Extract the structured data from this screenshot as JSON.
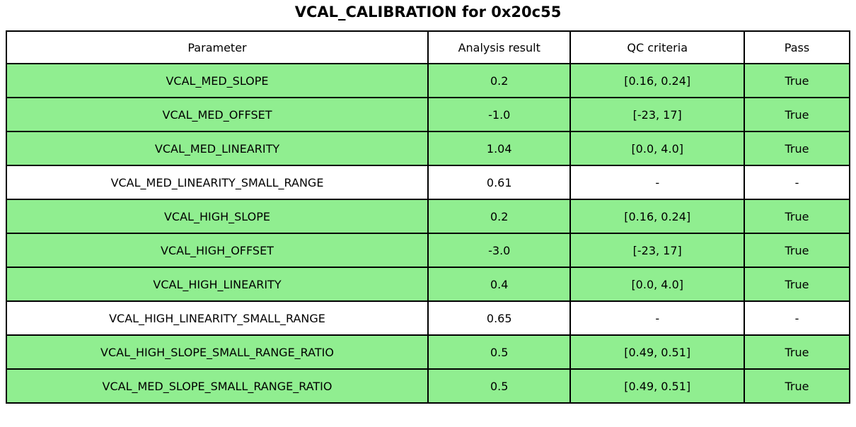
{
  "title": "VCAL_CALIBRATION for 0x20c55",
  "colors": {
    "pass_row_bg": "#90EE90",
    "default_row_bg": "#FFFFFF",
    "border": "#000000",
    "text": "#000000"
  },
  "table": {
    "columns": [
      "Parameter",
      "Analysis result",
      "QC criteria",
      "Pass"
    ],
    "rows": [
      {
        "cells": [
          "VCAL_MED_SLOPE",
          "0.2",
          "[0.16, 0.24]",
          "True"
        ],
        "highlight": true
      },
      {
        "cells": [
          "VCAL_MED_OFFSET",
          "-1.0",
          "[-23, 17]",
          "True"
        ],
        "highlight": true
      },
      {
        "cells": [
          "VCAL_MED_LINEARITY",
          "1.04",
          "[0.0, 4.0]",
          "True"
        ],
        "highlight": true
      },
      {
        "cells": [
          "VCAL_MED_LINEARITY_SMALL_RANGE",
          "0.61",
          "-",
          "-"
        ],
        "highlight": false
      },
      {
        "cells": [
          "VCAL_HIGH_SLOPE",
          "0.2",
          "[0.16, 0.24]",
          "True"
        ],
        "highlight": true
      },
      {
        "cells": [
          "VCAL_HIGH_OFFSET",
          "-3.0",
          "[-23, 17]",
          "True"
        ],
        "highlight": true
      },
      {
        "cells": [
          "VCAL_HIGH_LINEARITY",
          "0.4",
          "[0.0, 4.0]",
          "True"
        ],
        "highlight": true
      },
      {
        "cells": [
          "VCAL_HIGH_LINEARITY_SMALL_RANGE",
          "0.65",
          "-",
          "-"
        ],
        "highlight": false
      },
      {
        "cells": [
          "VCAL_HIGH_SLOPE_SMALL_RANGE_RATIO",
          "0.5",
          "[0.49, 0.51]",
          "True"
        ],
        "highlight": true
      },
      {
        "cells": [
          "VCAL_MED_SLOPE_SMALL_RANGE_RATIO",
          "0.5",
          "[0.49, 0.51]",
          "True"
        ],
        "highlight": true
      }
    ]
  },
  "chart_data": {
    "type": "table",
    "title": "VCAL_CALIBRATION for 0x20c55",
    "columns": [
      "Parameter",
      "Analysis result",
      "QC criteria",
      "Pass"
    ],
    "rows": [
      [
        "VCAL_MED_SLOPE",
        0.2,
        "[0.16, 0.24]",
        "True"
      ],
      [
        "VCAL_MED_OFFSET",
        -1.0,
        "[-23, 17]",
        "True"
      ],
      [
        "VCAL_MED_LINEARITY",
        1.04,
        "[0.0, 4.0]",
        "True"
      ],
      [
        "VCAL_MED_LINEARITY_SMALL_RANGE",
        0.61,
        "-",
        "-"
      ],
      [
        "VCAL_HIGH_SLOPE",
        0.2,
        "[0.16, 0.24]",
        "True"
      ],
      [
        "VCAL_HIGH_OFFSET",
        -3.0,
        "[-23, 17]",
        "True"
      ],
      [
        "VCAL_HIGH_LINEARITY",
        0.4,
        "[0.0, 4.0]",
        "True"
      ],
      [
        "VCAL_HIGH_LINEARITY_SMALL_RANGE",
        0.65,
        "-",
        "-"
      ],
      [
        "VCAL_HIGH_SLOPE_SMALL_RANGE_RATIO",
        0.5,
        "[0.49, 0.51]",
        "True"
      ],
      [
        "VCAL_MED_SLOPE_SMALL_RANGE_RATIO",
        0.5,
        "[0.49, 0.51]",
        "True"
      ]
    ],
    "row_highlight_color": "#90EE90",
    "grid": true,
    "legend_position": "none"
  }
}
